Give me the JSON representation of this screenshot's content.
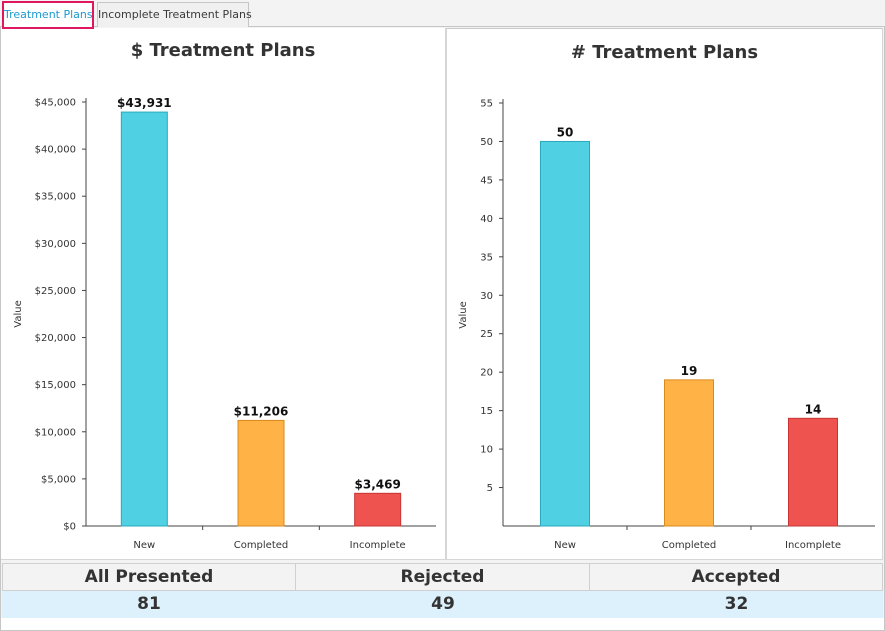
{
  "tabs": [
    {
      "label": "Treatment Plans",
      "active": true
    },
    {
      "label": "Incomplete Treatment Plans",
      "active": false
    }
  ],
  "colors": {
    "new": "#4fd1e3",
    "completed": "#ffb347",
    "incomplete": "#ef5350",
    "active_tab_border": "#e0175f",
    "active_tab_text": "#1c9ad0",
    "stats_value_bg": "#dcf1fb"
  },
  "chart_data": [
    {
      "type": "bar",
      "title": "$ Treatment Plans",
      "xlabel": "",
      "ylabel": "Value",
      "categories": [
        "New",
        "Completed",
        "Incomplete"
      ],
      "values": [
        43931,
        11206,
        3469
      ],
      "value_labels": [
        "$43,931",
        "$11,206",
        "$3,469"
      ],
      "ylim": [
        0,
        45000
      ],
      "yticks": [
        0,
        5000,
        10000,
        15000,
        20000,
        25000,
        30000,
        35000,
        40000,
        45000
      ],
      "ytick_labels": [
        "$0",
        "$5,000",
        "$10,000",
        "$15,000",
        "$20,000",
        "$25,000",
        "$30,000",
        "$35,000",
        "$40,000",
        "$45,000"
      ],
      "grid": false,
      "legend": "none"
    },
    {
      "type": "bar",
      "title": "# Treatment Plans",
      "xlabel": "",
      "ylabel": "Value",
      "categories": [
        "New",
        "Completed",
        "Incomplete"
      ],
      "values": [
        50,
        19,
        14
      ],
      "value_labels": [
        "50",
        "19",
        "14"
      ],
      "ylim": [
        0,
        55
      ],
      "yticks": [
        5,
        10,
        15,
        20,
        25,
        30,
        35,
        40,
        45,
        50,
        55
      ],
      "ytick_labels": [
        "5",
        "10",
        "15",
        "20",
        "25",
        "30",
        "35",
        "40",
        "45",
        "50",
        "55"
      ],
      "grid": false,
      "legend": "none"
    }
  ],
  "stats": {
    "headers": [
      "All Presented",
      "Rejected",
      "Accepted"
    ],
    "values": [
      "81",
      "49",
      "32"
    ]
  }
}
